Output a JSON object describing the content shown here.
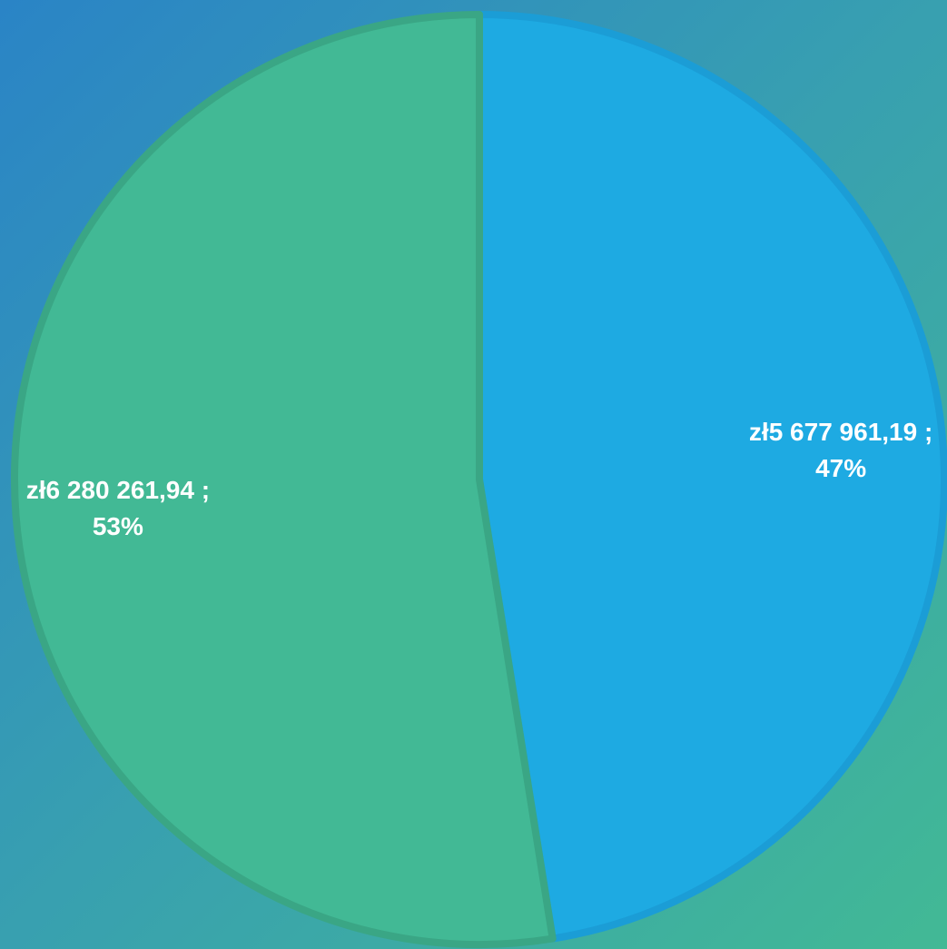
{
  "chart_data": {
    "type": "pie",
    "categories": [
      null,
      null
    ],
    "values": [
      5677961.19,
      6280261.94
    ],
    "value_labels": [
      "zł5 677 961,19 ; 47%",
      "zł6 280 261,94 ; 53%"
    ],
    "colors": [
      "#1eaae2",
      "#42b995"
    ],
    "edge_colors": [
      "#1b9dd6",
      "#3aa685"
    ]
  }
}
